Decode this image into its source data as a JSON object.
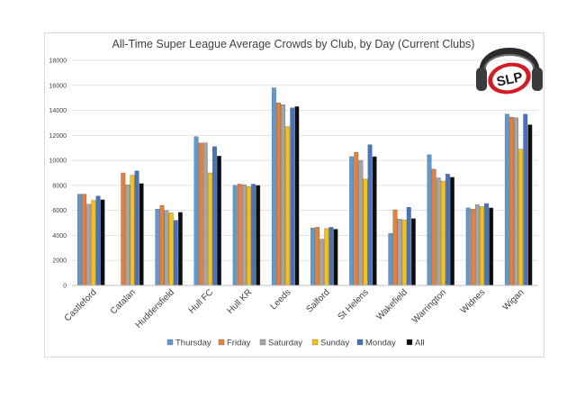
{
  "logo": {
    "text": "SLP"
  },
  "chart_data": {
    "type": "bar",
    "title": "All-Time Super League Average Crowds by Club, by Day (Current Clubs)",
    "xlabel": "",
    "ylabel": "",
    "ylim": [
      0,
      18000
    ],
    "yticks": [
      "0",
      "2000",
      "4000",
      "6000",
      "8000",
      "10000",
      "12000",
      "14000",
      "16000",
      "18000"
    ],
    "grid": true,
    "legend_position": "bottom",
    "categories": [
      "Castleford",
      "Catalan",
      "Huddersfield",
      "Hull FC",
      "Hull KR",
      "Leeds",
      "Salford",
      "St Helens",
      "Wakefield",
      "Warrington",
      "Widnes",
      "Wigan"
    ],
    "series": [
      {
        "name": "Thursday",
        "color": "#5b9bd5",
        "values": [
          7300,
          null,
          6100,
          11900,
          8000,
          15800,
          4600,
          10300,
          4150,
          10450,
          6200,
          13700
        ]
      },
      {
        "name": "Friday",
        "color": "#ed7d31",
        "values": [
          7300,
          9000,
          6400,
          11400,
          8100,
          14600,
          4650,
          10650,
          6050,
          9300,
          6100,
          13450
        ]
      },
      {
        "name": "Saturday",
        "color": "#a5a5a5",
        "values": [
          6500,
          8050,
          6000,
          11400,
          8050,
          14450,
          3700,
          10000,
          5300,
          8600,
          6450,
          13400
        ]
      },
      {
        "name": "Sunday",
        "color": "#ffc000",
        "values": [
          6800,
          8800,
          5800,
          9000,
          7900,
          12700,
          4550,
          8500,
          5250,
          8350,
          6300,
          10900
        ]
      },
      {
        "name": "Monday",
        "color": "#4472c4",
        "values": [
          7150,
          9150,
          5200,
          11100,
          8100,
          14200,
          4650,
          11250,
          6250,
          8900,
          6550,
          13700
        ]
      },
      {
        "name": "All",
        "color": "#0d0d0d",
        "values": [
          6850,
          8150,
          5850,
          10350,
          8000,
          14300,
          4500,
          10300,
          5350,
          8650,
          6200,
          12850
        ]
      }
    ]
  }
}
